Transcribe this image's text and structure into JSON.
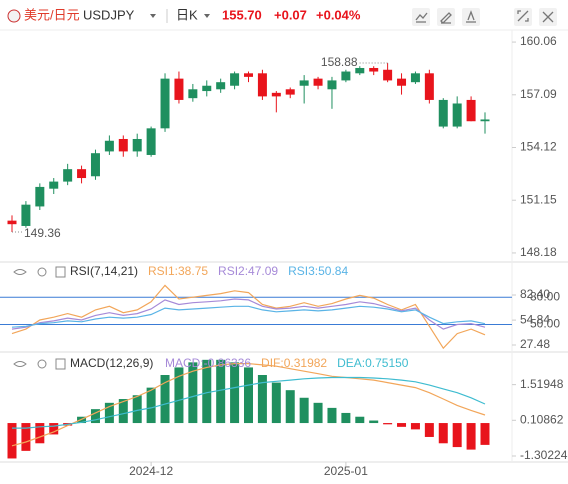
{
  "header": {
    "pair": "美元/日元",
    "symbol": "USDJPY",
    "period": "日K",
    "price": "155.70",
    "change": "+0.07",
    "change_pct": "+0.04%"
  },
  "chart_data": [
    {
      "type": "candlestick",
      "up_color": "#1f8f5f",
      "down_color": "#e8141c",
      "open": [
        150.0,
        149.7,
        150.8,
        151.8,
        152.2,
        152.9,
        152.5,
        153.9,
        154.6,
        153.9,
        153.7,
        155.2,
        158.0,
        156.9,
        157.3,
        157.4,
        157.6,
        158.3,
        158.3,
        157.2,
        157.4,
        157.6,
        158.0,
        157.4,
        157.9,
        158.3,
        158.6,
        158.5,
        158.0,
        157.8,
        158.3,
        155.3,
        155.3,
        156.8,
        155.6
      ],
      "high": [
        150.3,
        151.1,
        152.1,
        152.4,
        153.2,
        153.1,
        154.0,
        154.8,
        154.8,
        154.9,
        155.3,
        158.3,
        158.4,
        157.7,
        157.9,
        158.0,
        158.4,
        158.4,
        158.5,
        157.3,
        157.5,
        158.2,
        158.1,
        158.1,
        158.5,
        158.7,
        158.7,
        158.88,
        158.3,
        158.4,
        158.5,
        156.9,
        157.0,
        157.0,
        156.1
      ],
      "low": [
        149.36,
        149.6,
        150.6,
        151.5,
        152.0,
        152.1,
        152.3,
        153.7,
        153.6,
        153.6,
        153.6,
        155.0,
        156.6,
        156.7,
        157.0,
        157.2,
        157.4,
        157.8,
        156.8,
        156.1,
        156.9,
        156.6,
        157.4,
        156.3,
        157.8,
        158.2,
        158.2,
        157.8,
        157.1,
        157.7,
        156.6,
        155.2,
        155.2,
        155.6,
        154.9
      ],
      "close": [
        149.8,
        150.9,
        151.9,
        152.2,
        152.9,
        152.4,
        153.8,
        154.5,
        153.9,
        154.6,
        155.2,
        158.0,
        156.8,
        157.4,
        157.6,
        157.8,
        158.3,
        158.1,
        157.0,
        157.0,
        157.1,
        157.9,
        157.6,
        157.9,
        158.4,
        158.6,
        158.4,
        157.9,
        157.6,
        158.3,
        156.8,
        156.8,
        156.6,
        155.6,
        155.7
      ],
      "ylim": [
        147.67,
        160.74
      ],
      "yticks": [
        148.18,
        151.15,
        154.12,
        157.09,
        160.06
      ]
    },
    {
      "type": "line",
      "title": "RSI(7,14,21)",
      "series": [
        {
          "name": "RSI1:38.75",
          "color": "#f2a65a",
          "values": [
            40,
            45,
            55,
            58,
            62,
            58,
            66,
            70,
            63,
            66,
            75,
            93,
            78,
            80,
            82,
            84,
            87,
            85,
            72,
            68,
            70,
            74,
            70,
            73,
            78,
            82,
            79,
            72,
            66,
            72,
            48,
            24,
            40,
            45,
            38.75
          ]
        },
        {
          "name": "RSI2:47.09",
          "color": "#a68ad8",
          "values": [
            45,
            47,
            52,
            54,
            57,
            55,
            60,
            63,
            60,
            62,
            67,
            77,
            72,
            74,
            75,
            76,
            78,
            77,
            70,
            67,
            68,
            70,
            68,
            70,
            72,
            75,
            73,
            69,
            65,
            68,
            55,
            45,
            50,
            51,
            47.09
          ]
        },
        {
          "name": "RSI3:50.84",
          "color": "#5ab4e6",
          "values": [
            47,
            48,
            51,
            52,
            54,
            53,
            56,
            58,
            57,
            58,
            61,
            68,
            66,
            67,
            68,
            69,
            70,
            70,
            66,
            64,
            65,
            66,
            65,
            66,
            68,
            70,
            69,
            67,
            64,
            66,
            58,
            51,
            53,
            54,
            50.84
          ]
        }
      ],
      "reference_lines": [
        {
          "value": 80,
          "label": "80.00"
        },
        {
          "value": 50,
          "label": "50.00"
        }
      ],
      "ylim": [
        22,
        95.6
      ],
      "yticks": [
        27.48,
        54.84,
        {
          "value": 82.4,
          "label": "82.40"
        }
      ]
    },
    {
      "type": "macd",
      "title": "MACD(12,26,9)",
      "categories": [
        null,
        null,
        null,
        null,
        null,
        null,
        null,
        null,
        null,
        null,
        "2024-12",
        null,
        null,
        null,
        null,
        null,
        null,
        null,
        null,
        null,
        null,
        null,
        null,
        null,
        "2025-01",
        null,
        null,
        null,
        null,
        null,
        null,
        null,
        null,
        null,
        null
      ],
      "series": [
        {
          "name": "MACD:-0.86336",
          "color": "#a68ad8",
          "up_color": "#1f8f5f",
          "down_color": "#e8141c",
          "values": [
            -1.4,
            -1.1,
            -0.8,
            -0.45,
            -0.1,
            0.25,
            0.55,
            0.8,
            0.95,
            1.1,
            1.4,
            1.9,
            2.2,
            2.4,
            2.5,
            2.5,
            2.4,
            2.2,
            1.9,
            1.6,
            1.3,
            1.0,
            0.8,
            0.6,
            0.4,
            0.25,
            0.1,
            -0.05,
            -0.15,
            -0.25,
            -0.55,
            -0.8,
            -0.95,
            -1.05,
            -0.86336
          ]
        },
        {
          "name": "DIF:0.31982",
          "color": "#f2a65a",
          "values": [
            -0.9,
            -0.75,
            -0.55,
            -0.35,
            -0.1,
            0.15,
            0.4,
            0.65,
            0.85,
            1.05,
            1.3,
            1.6,
            1.85,
            2.05,
            2.2,
            2.3,
            2.35,
            2.35,
            2.3,
            2.25,
            2.15,
            2.05,
            1.95,
            1.85,
            1.8,
            1.75,
            1.7,
            1.6,
            1.5,
            1.4,
            1.2,
            0.95,
            0.7,
            0.5,
            0.31982
          ]
        },
        {
          "name": "DEA:0.75150",
          "color": "#3fbcd0",
          "values": [
            -0.2,
            -0.2,
            -0.15,
            -0.12,
            -0.05,
            0.03,
            0.13,
            0.25,
            0.37,
            0.5,
            0.6,
            0.75,
            0.9,
            1.05,
            1.2,
            1.3,
            1.4,
            1.5,
            1.6,
            1.65,
            1.7,
            1.75,
            1.78,
            1.8,
            1.8,
            1.8,
            1.78,
            1.75,
            1.7,
            1.63,
            1.5,
            1.35,
            1.2,
            1.0,
            0.7515
          ]
        }
      ],
      "ylim": [
        -1.54,
        2.77
      ],
      "yticks": [
        -1.30224,
        0.10862,
        1.51948
      ]
    }
  ]
}
